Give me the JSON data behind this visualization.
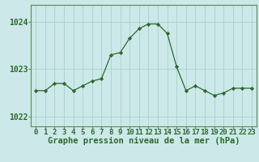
{
  "x": [
    0,
    1,
    2,
    3,
    4,
    5,
    6,
    7,
    8,
    9,
    10,
    11,
    12,
    13,
    14,
    15,
    16,
    17,
    18,
    19,
    20,
    21,
    22,
    23
  ],
  "y": [
    1022.55,
    1022.55,
    1022.7,
    1022.7,
    1022.55,
    1022.65,
    1022.75,
    1022.8,
    1023.3,
    1023.35,
    1023.65,
    1023.85,
    1023.95,
    1023.95,
    1023.75,
    1023.05,
    1022.55,
    1022.65,
    1022.55,
    1022.45,
    1022.5,
    1022.6,
    1022.6,
    1022.6
  ],
  "line_color": "#2d6a2d",
  "marker": "D",
  "marker_size": 2.2,
  "bg_color": "#cce8e8",
  "grid_color": "#9ecece",
  "title": "Graphe pression niveau de la mer (hPa)",
  "ylabel_ticks": [
    1022,
    1023,
    1024
  ],
  "ylim": [
    1021.8,
    1024.35
  ],
  "xlim": [
    -0.5,
    23.5
  ],
  "title_fontsize": 7.5,
  "tick_fontsize": 6.5,
  "spine_color": "#5a8a5a"
}
